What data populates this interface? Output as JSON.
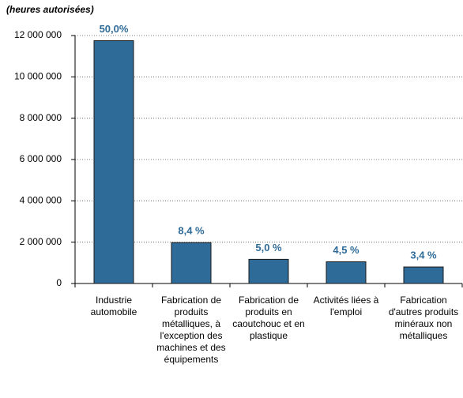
{
  "chart_data": {
    "type": "bar",
    "y_label": "(heures autorisées)",
    "categories": [
      "Industrie automobile",
      "Fabrication de produits métalliques, à l'exception des machines et des équipements",
      "Fabrication de produits en caoutchouc et en plastique",
      "Activités liées à l'emploi",
      "Fabrication d'autres produits minéraux non métalliques"
    ],
    "values": [
      11750000,
      1980000,
      1170000,
      1050000,
      800000
    ],
    "percent_labels": [
      "50,0%",
      "8,4 %",
      "5,0 %",
      "4,5 %",
      "3,4 %"
    ],
    "color": "#2e6b98",
    "ylim": [
      0,
      12000000
    ],
    "yticks": [
      {
        "value": 0,
        "label": "0"
      },
      {
        "value": 2000000,
        "label": "2 000 000"
      },
      {
        "value": 4000000,
        "label": "4 000 000"
      },
      {
        "value": 6000000,
        "label": "6 000 000"
      },
      {
        "value": 8000000,
        "label": "8 000 000"
      },
      {
        "value": 10000000,
        "label": "10 000 000"
      },
      {
        "value": 12000000,
        "label": "12 000 000"
      }
    ],
    "grid": true
  }
}
